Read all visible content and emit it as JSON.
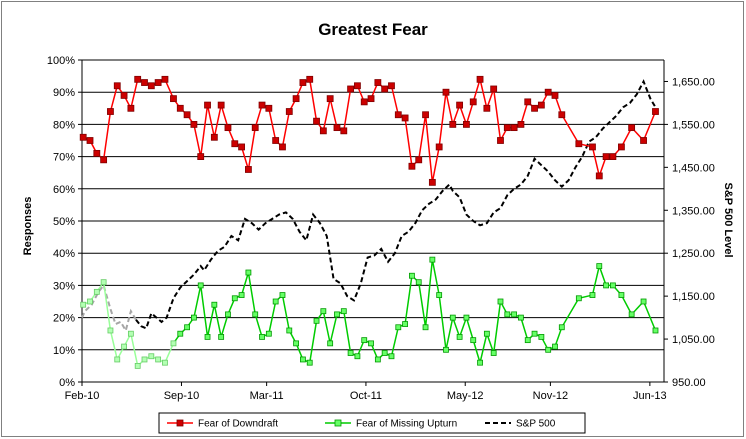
{
  "chart_data": {
    "type": "line",
    "title": "Greatest Fear",
    "ylabel": "Responses",
    "y2label": "S&P 500 Level",
    "ylim": [
      0,
      100
    ],
    "y2lim": [
      950,
      1700
    ],
    "yticks": [
      "0%",
      "10%",
      "20%",
      "30%",
      "40%",
      "50%",
      "60%",
      "70%",
      "80%",
      "90%",
      "100%"
    ],
    "y2ticks": [
      "950.00",
      "1,050.00",
      "1,150.00",
      "1,250.00",
      "1,350.00",
      "1,450.00",
      "1,550.00",
      "1,650.00"
    ],
    "xlim": [
      2010.083,
      2013.5
    ],
    "xticks": [
      {
        "label": "Feb-10",
        "x": 2010.083
      },
      {
        "label": "Sep-10",
        "x": 2010.667
      },
      {
        "label": "Mar-11",
        "x": 2011.167
      },
      {
        "label": "Oct-11",
        "x": 2011.75
      },
      {
        "label": "May-12",
        "x": 2012.333
      },
      {
        "label": "Nov-12",
        "x": 2012.833
      },
      {
        "label": "Jun-13",
        "x": 2013.417
      }
    ],
    "legend_position": "bottom",
    "grid": "horizontal",
    "colors": {
      "downdraft": "#ff0000",
      "downdraft_marker": "#cc0000",
      "upturn": "#00cc00",
      "upturn_marker": "#66ff66",
      "sp500": "#000000"
    },
    "series": [
      {
        "name": "Fear of Downdraft",
        "axis": "left",
        "x": [
          2010.09,
          2010.13,
          2010.17,
          2010.21,
          2010.25,
          2010.29,
          2010.33,
          2010.37,
          2010.41,
          2010.45,
          2010.49,
          2010.53,
          2010.57,
          2010.62,
          2010.66,
          2010.7,
          2010.74,
          2010.78,
          2010.82,
          2010.86,
          2010.9,
          2010.94,
          2010.98,
          2011.02,
          2011.06,
          2011.1,
          2011.14,
          2011.18,
          2011.22,
          2011.26,
          2011.3,
          2011.34,
          2011.38,
          2011.42,
          2011.46,
          2011.5,
          2011.54,
          2011.58,
          2011.62,
          2011.66,
          2011.7,
          2011.74,
          2011.78,
          2011.82,
          2011.86,
          2011.9,
          2011.94,
          2011.98,
          2012.02,
          2012.06,
          2012.1,
          2012.14,
          2012.18,
          2012.22,
          2012.26,
          2012.3,
          2012.34,
          2012.38,
          2012.42,
          2012.46,
          2012.5,
          2012.54,
          2012.58,
          2012.62,
          2012.66,
          2012.7,
          2012.74,
          2012.78,
          2012.82,
          2012.86,
          2012.9,
          2013.0,
          2013.08,
          2013.12,
          2013.16,
          2013.2,
          2013.25,
          2013.31,
          2013.38,
          2013.45
        ],
        "values": [
          76,
          75,
          71,
          69,
          84,
          92,
          89,
          85,
          94,
          93,
          92,
          93,
          94,
          88,
          85,
          83,
          80,
          70,
          86,
          76,
          86,
          79,
          74,
          73,
          66,
          79,
          86,
          85,
          75,
          73,
          84,
          88,
          93,
          94,
          81,
          78,
          88,
          79,
          78,
          91,
          92,
          87,
          88,
          93,
          91,
          92,
          83,
          82,
          67,
          69,
          83,
          62,
          73,
          90,
          80,
          86,
          80,
          87,
          94,
          85,
          91,
          75,
          79,
          79,
          80,
          87,
          85,
          86,
          90,
          89,
          83,
          74,
          73,
          64,
          70,
          70,
          73,
          79,
          75,
          84
        ]
      },
      {
        "name": "Fear of Missing Upturn",
        "axis": "left",
        "x": [
          2010.09,
          2010.13,
          2010.17,
          2010.21,
          2010.25,
          2010.29,
          2010.33,
          2010.37,
          2010.41,
          2010.45,
          2010.49,
          2010.53,
          2010.57,
          2010.62,
          2010.66,
          2010.7,
          2010.74,
          2010.78,
          2010.82,
          2010.86,
          2010.9,
          2010.94,
          2010.98,
          2011.02,
          2011.06,
          2011.1,
          2011.14,
          2011.18,
          2011.22,
          2011.26,
          2011.3,
          2011.34,
          2011.38,
          2011.42,
          2011.46,
          2011.5,
          2011.54,
          2011.58,
          2011.62,
          2011.66,
          2011.7,
          2011.74,
          2011.78,
          2011.82,
          2011.86,
          2011.9,
          2011.94,
          2011.98,
          2012.02,
          2012.06,
          2012.1,
          2012.14,
          2012.18,
          2012.22,
          2012.26,
          2012.3,
          2012.34,
          2012.38,
          2012.42,
          2012.46,
          2012.5,
          2012.54,
          2012.58,
          2012.62,
          2012.66,
          2012.7,
          2012.74,
          2012.78,
          2012.82,
          2012.86,
          2012.9,
          2013.0,
          2013.08,
          2013.12,
          2013.16,
          2013.2,
          2013.25,
          2013.31,
          2013.38,
          2013.45
        ],
        "values": [
          24,
          25,
          28,
          31,
          16,
          7,
          11,
          15,
          5,
          7,
          8,
          7,
          6,
          12,
          15,
          17,
          20,
          30,
          14,
          24,
          14,
          21,
          26,
          27,
          34,
          21,
          14,
          15,
          25,
          27,
          16,
          12,
          7,
          6,
          19,
          22,
          12,
          21,
          22,
          9,
          8,
          13,
          12,
          7,
          9,
          8,
          17,
          18,
          33,
          31,
          17,
          38,
          27,
          10,
          20,
          14,
          20,
          13,
          6,
          15,
          9,
          25,
          21,
          21,
          20,
          13,
          15,
          14,
          10,
          11,
          17,
          26,
          27,
          36,
          30,
          30,
          27,
          21,
          25,
          16
        ]
      },
      {
        "name": "S&P 500",
        "axis": "right",
        "x": [
          2010.083,
          2010.1,
          2010.14,
          2010.18,
          2010.21,
          2010.25,
          2010.28,
          2010.31,
          2010.34,
          2010.37,
          2010.4,
          2010.43,
          2010.46,
          2010.49,
          2010.52,
          2010.55,
          2010.58,
          2010.62,
          2010.66,
          2010.7,
          2010.74,
          2010.78,
          2010.8,
          2010.84,
          2010.88,
          2010.92,
          2010.96,
          2011.0,
          2011.04,
          2011.08,
          2011.12,
          2011.16,
          2011.2,
          2011.24,
          2011.28,
          2011.32,
          2011.36,
          2011.4,
          2011.44,
          2011.48,
          2011.52,
          2011.56,
          2011.6,
          2011.64,
          2011.68,
          2011.72,
          2011.76,
          2011.8,
          2011.84,
          2011.88,
          2011.92,
          2011.96,
          2012.0,
          2012.04,
          2012.08,
          2012.12,
          2012.16,
          2012.2,
          2012.24,
          2012.26,
          2012.3,
          2012.34,
          2012.38,
          2012.42,
          2012.46,
          2012.5,
          2012.54,
          2012.58,
          2012.62,
          2012.66,
          2012.7,
          2012.74,
          2012.78,
          2012.82,
          2012.86,
          2012.9,
          2012.94,
          2012.98,
          2013.02,
          2013.06,
          2013.1,
          2013.14,
          2013.18,
          2013.22,
          2013.26,
          2013.3,
          2013.34,
          2013.38,
          2013.42,
          2013.45
        ],
        "values": [
          1100,
          1115,
          1130,
          1160,
          1175,
          1120,
          1085,
          1090,
          1070,
          1115,
          1095,
          1080,
          1075,
          1110,
          1100,
          1090,
          1100,
          1145,
          1170,
          1185,
          1200,
          1220,
          1210,
          1235,
          1255,
          1265,
          1290,
          1280,
          1330,
          1320,
          1305,
          1320,
          1330,
          1340,
          1345,
          1330,
          1300,
          1280,
          1340,
          1320,
          1290,
          1190,
          1180,
          1150,
          1140,
          1180,
          1240,
          1245,
          1260,
          1230,
          1250,
          1290,
          1300,
          1320,
          1350,
          1365,
          1375,
          1395,
          1410,
          1395,
          1380,
          1340,
          1325,
          1315,
          1320,
          1345,
          1355,
          1385,
          1400,
          1410,
          1430,
          1470,
          1455,
          1440,
          1420,
          1405,
          1420,
          1450,
          1475,
          1510,
          1520,
          1540,
          1555,
          1570,
          1590,
          1600,
          1620,
          1650,
          1610,
          1590
        ]
      }
    ]
  }
}
